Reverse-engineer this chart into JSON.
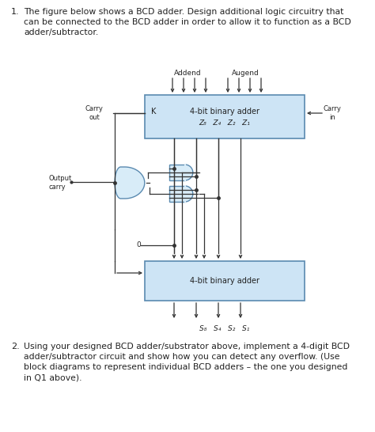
{
  "background_color": "#ffffff",
  "text_color": "#222222",
  "box_fill_color": "#cde4f5",
  "box_edge_color": "#5a8ab0",
  "gate_fill_color": "#d8ecf8",
  "gate_edge_color": "#5a8ab0",
  "top_box_label": "4-bit binary adder",
  "top_box_sublabel": "Z₈   Z₄   Z₂   Z₁",
  "bottom_box_label": "4-bit binary adder",
  "bottom_box_sublabel": "S₈   S₄   S₂   S₁",
  "addend_label": "Addend",
  "augend_label": "Augend",
  "carry_out_label": "Carry\nout",
  "carry_in_label": "Carry\nin",
  "output_carry_label": "Output\ncarry",
  "k_label": "K",
  "zero_label": "0",
  "line_color": "#333333",
  "fontsize_main": 7.5,
  "fontsize_small": 6.5,
  "fontsize_label": 7.0,
  "q1_lines": [
    "The figure below shows a BCD adder. Design additional logic circuitry that",
    "can be connected to the BCD adder in order to allow it to function as a BCD",
    "adder/subtractor."
  ],
  "q2_lines": [
    "Using your designed BCD adder/substrator above, implement a 4-digit BCD",
    "adder/subtractor circuit and show how you can detect any overflow. (Use",
    "block diagrams to represent individual BCD adders – the one you designed",
    "in Q1 above)."
  ]
}
